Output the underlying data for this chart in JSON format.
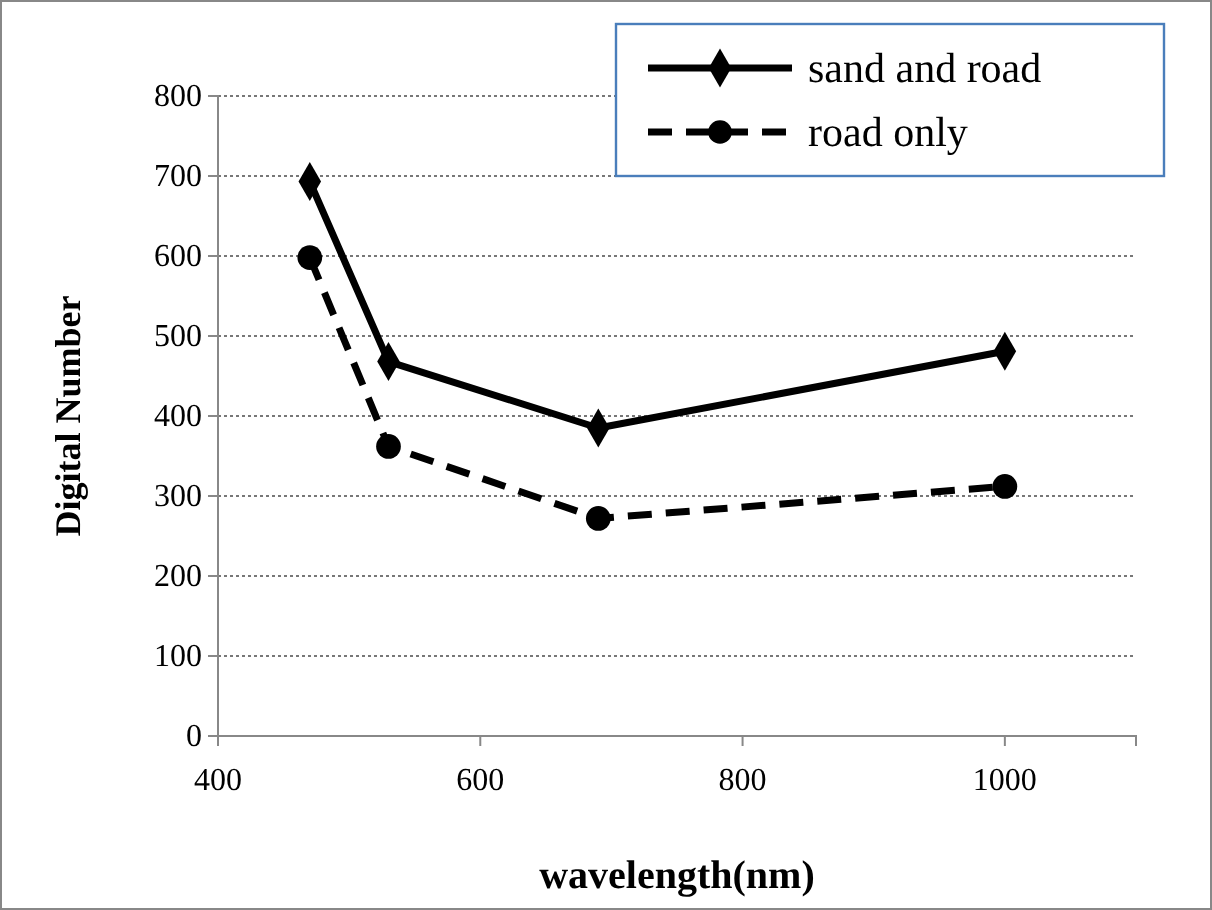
{
  "chart_data": {
    "type": "line",
    "xlabel": "wavelength(nm)",
    "ylabel": "Digital Number",
    "xlim": [
      400,
      1100
    ],
    "xticks": [
      400,
      600,
      800,
      1000,
      {
        "value": 1100,
        "label": null
      }
    ],
    "ylim": [
      0,
      800
    ],
    "yticks": [
      0,
      100,
      200,
      300,
      400,
      500,
      600,
      700,
      800
    ],
    "grid": "y",
    "legend": "top right",
    "series": [
      {
        "name": "sand and road",
        "color": "#000000",
        "x": [
          470,
          530,
          690,
          1000
        ],
        "values": [
          693,
          468,
          385,
          481
        ],
        "marker": "diamond",
        "line_style": "solid"
      },
      {
        "name": "road only",
        "color": "#000000",
        "x": [
          470,
          530,
          690,
          1000
        ],
        "values": [
          598,
          362,
          272,
          312
        ],
        "marker": "circle",
        "line_style": "dashed"
      }
    ]
  }
}
